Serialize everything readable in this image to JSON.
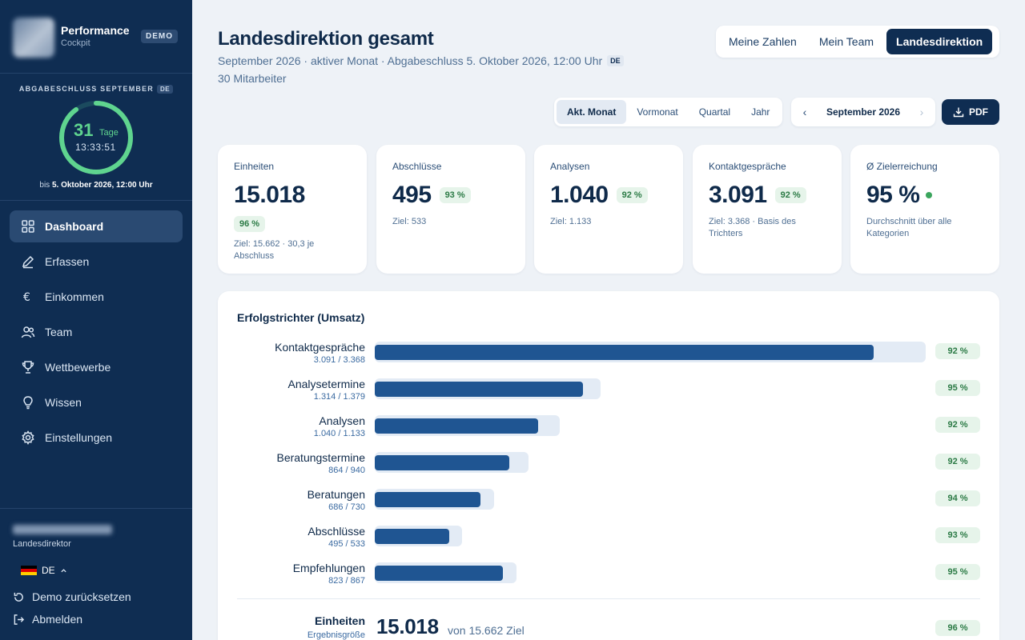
{
  "sidebar": {
    "brand_title": "Performance",
    "brand_sub": "Cockpit",
    "demo_badge": "DEMO",
    "deadline_label": "ABGABESCHLUSS SEPTEMBER",
    "deadline_lang": "DE",
    "countdown_days": "31",
    "countdown_days_unit": "Tage",
    "countdown_time": "13:33:51",
    "countdown_fraction": 0.9,
    "deadline_until_prefix": "bis",
    "deadline_until_date": "5. Oktober 2026, 12:00 Uhr",
    "nav": [
      {
        "label": "Dashboard",
        "icon": "dashboard-icon",
        "active": true
      },
      {
        "label": "Erfassen",
        "icon": "pencil-icon"
      },
      {
        "label": "Einkommen",
        "icon": "euro-icon"
      },
      {
        "label": "Team",
        "icon": "users-icon"
      },
      {
        "label": "Wettbewerbe",
        "icon": "trophy-icon"
      },
      {
        "label": "Wissen",
        "icon": "lightbulb-icon"
      },
      {
        "label": "Einstellungen",
        "icon": "gear-icon"
      }
    ],
    "user_role": "Landesdirektor",
    "language": "DE",
    "reset_label": "Demo zurücksetzen",
    "logout_label": "Abmelden"
  },
  "header": {
    "title": "Landesdirektion gesamt",
    "subtitle": "September 2026 · aktiver Monat · Abgabeschluss 5. Oktober 2026, 12:00 Uhr",
    "subtitle_lang": "DE",
    "employee_count": "30 Mitarbeiter",
    "view_switch": [
      "Meine Zahlen",
      "Mein Team",
      "Landesdirektion"
    ],
    "view_active": "Landesdirektion",
    "period_tabs": [
      "Akt. Monat",
      "Vormonat",
      "Quartal",
      "Jahr"
    ],
    "period_active": "Akt. Monat",
    "month_prev": "‹",
    "month_label": "September 2026",
    "month_next": "›",
    "pdf_label": "PDF"
  },
  "kpis": [
    {
      "label": "Einheiten",
      "value": "15.018",
      "pct": "96 %",
      "note": "Ziel: 15.662 · 30,3 je Abschluss"
    },
    {
      "label": "Abschlüsse",
      "value": "495",
      "pct": "93 %",
      "note": "Ziel: 533"
    },
    {
      "label": "Analysen",
      "value": "1.040",
      "pct": "92 %",
      "note": "Ziel: 1.133"
    },
    {
      "label": "Kontaktgespräche",
      "value": "3.091",
      "pct": "92 %",
      "note": "Ziel: 3.368 · Basis des Trichters"
    },
    {
      "label": "Ø Zielerreichung",
      "value": "95 %",
      "note": "Durchschnitt über alle Kategorien"
    }
  ],
  "funnel": {
    "title": "Erfolgstrichter (Umsatz)",
    "scale_max": 3368,
    "rows": [
      {
        "label": "Kontaktgespräche",
        "sub": "3.091 / 3.368",
        "actual": 3091,
        "target": 3368,
        "pct": "92 %"
      },
      {
        "label": "Analysetermine",
        "sub": "1.314 / 1.379",
        "actual": 1314,
        "target": 1379,
        "pct": "95 %"
      },
      {
        "label": "Analysen",
        "sub": "1.040 / 1.133",
        "actual": 1040,
        "target": 1133,
        "pct": "92 %"
      },
      {
        "label": "Beratungstermine",
        "sub": "864 / 940",
        "actual": 864,
        "target": 940,
        "pct": "92 %"
      },
      {
        "label": "Beratungen",
        "sub": "686 / 730",
        "actual": 686,
        "target": 730,
        "pct": "94 %"
      },
      {
        "label": "Abschlüsse",
        "sub": "495 / 533",
        "actual": 495,
        "target": 533,
        "pct": "93 %"
      },
      {
        "label": "Empfehlungen",
        "sub": "823 / 867",
        "actual": 823,
        "target": 867,
        "pct": "95 %"
      }
    ],
    "total": {
      "label": "Einheiten",
      "sub": "Ergebnisgröße",
      "value": "15.018",
      "ziel": "von 15.662 Ziel",
      "pct": "96 %"
    }
  },
  "colors": {
    "sidebar": "#0f2d52",
    "accent_bar": "#1f5592",
    "track": "#e3ebf5",
    "ring": "#5fd48f",
    "pill_bg": "#e6f4ea",
    "pill_text": "#2b7a45"
  }
}
